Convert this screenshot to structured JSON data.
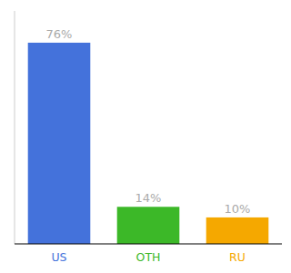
{
  "chart_data": {
    "type": "bar",
    "categories": [
      "US",
      "OTH",
      "RU"
    ],
    "values": [
      76,
      14,
      10
    ],
    "value_labels": [
      "76%",
      "14%",
      "10%"
    ],
    "colors": [
      "#4472db",
      "#3cb828",
      "#f5a800"
    ],
    "ylim": [
      0,
      88
    ],
    "data_labels": true,
    "tick_labels": "x",
    "grid": false
  }
}
